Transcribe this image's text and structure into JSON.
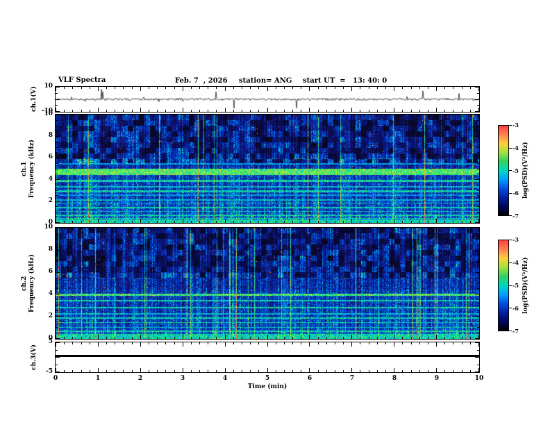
{
  "header": {
    "title": "VLF Spectra",
    "date": "Feb. 7  , 2026",
    "station": "station= ANG",
    "start_ut": "start UT  =   13: 40: 0"
  },
  "axes": {
    "time_label": "Time (min)",
    "time_ticks": [
      "0",
      "1",
      "2",
      "3",
      "4",
      "5",
      "6",
      "7",
      "8",
      "9",
      "10"
    ],
    "freq_ticks": [
      "0",
      "2",
      "4",
      "6",
      "8",
      "10"
    ],
    "ch1_volt_ticks": [
      "10",
      "-10"
    ],
    "ch3_volt_ticks": [
      "5",
      "-5"
    ],
    "ch1_ylabel": "ch.1(V)",
    "ch1_freq_label_line1": "ch.1",
    "ch1_freq_label_line2": "Frequency (kHz)",
    "ch2_freq_label_line1": "ch.2",
    "ch2_freq_label_line2": "Frequency (kHz)",
    "ch3_ylabel": "ch.3(V)"
  },
  "colorbar": {
    "label": "log(PSD)(V²/Hz)",
    "ticks": [
      "-3",
      "-4",
      "-5",
      "-6",
      "-7"
    ],
    "min": -7,
    "max": -3
  },
  "chart_data": [
    {
      "type": "line",
      "name": "ch1-voltage-waveform",
      "ylabel": "ch.1(V)",
      "ylim": [
        -10,
        10
      ],
      "xlim": [
        0,
        10
      ],
      "x_unit": "min",
      "description": "Noisy voltage trace fluctuating within about ±2 V of 0 V with sporadic impulsive spikes reaching roughly ±8 V across the 10-minute record"
    },
    {
      "type": "heatmap",
      "name": "ch1-spectrogram",
      "ylabel": "ch.1 Frequency (kHz)",
      "ylim": [
        0,
        10
      ],
      "xlim": [
        0,
        10
      ],
      "x_unit": "min",
      "zlabel": "log(PSD)(V²/Hz)",
      "zlim": [
        -7,
        -3
      ],
      "bands": [
        [
          4.75,
          0.28,
          0.72
        ],
        [
          5.5,
          0.06,
          0.5
        ],
        [
          3.9,
          0.08,
          0.62
        ],
        [
          3.35,
          0.06,
          0.55
        ],
        [
          2.95,
          0.07,
          0.6
        ],
        [
          2.6,
          0.05,
          0.5
        ],
        [
          2.15,
          0.06,
          0.55
        ],
        [
          1.85,
          0.05,
          0.55
        ],
        [
          1.45,
          0.06,
          0.6
        ],
        [
          1.1,
          0.05,
          0.55
        ],
        [
          0.75,
          0.06,
          0.6
        ],
        [
          0.45,
          0.05,
          0.6
        ]
      ],
      "description": "Broadband impulsive VLF noise: dense blue/cyan vertical striations, darker patchy region above ~6 kHz, bright cyan-green band near 4.5-5 kHz and many narrow green horizontal interference lines below 4 kHz; brightest dense emission below ~1 kHz"
    },
    {
      "type": "heatmap",
      "name": "ch2-spectrogram",
      "ylabel": "ch.2 Frequency (kHz)",
      "ylim": [
        0,
        10
      ],
      "xlim": [
        0,
        10
      ],
      "x_unit": "min",
      "zlabel": "log(PSD)(V²/Hz)",
      "zlim": [
        -7,
        -3
      ],
      "bands": [
        [
          4.0,
          0.12,
          0.7
        ],
        [
          3.45,
          0.07,
          0.6
        ],
        [
          2.85,
          0.07,
          0.6
        ],
        [
          2.3,
          0.06,
          0.55
        ],
        [
          1.9,
          0.06,
          0.6
        ],
        [
          1.5,
          0.06,
          0.6
        ],
        [
          1.05,
          0.05,
          0.55
        ],
        [
          0.7,
          0.06,
          0.6
        ],
        [
          0.4,
          0.05,
          0.6
        ]
      ],
      "description": "Same broadband impulsive noise as ch.1 with a strong green line near 4 kHz and several narrow horizontal lines below 3.5 kHz; dense bright emission below ~1 kHz"
    },
    {
      "type": "line",
      "name": "ch3-voltage",
      "ylabel": "ch.3(V)",
      "ylim": [
        -5,
        5
      ],
      "xlim": [
        0,
        10
      ],
      "x_unit": "min",
      "value": 1.0,
      "description": "Constant flat heavy trace near +1 V for the entire record"
    }
  ]
}
